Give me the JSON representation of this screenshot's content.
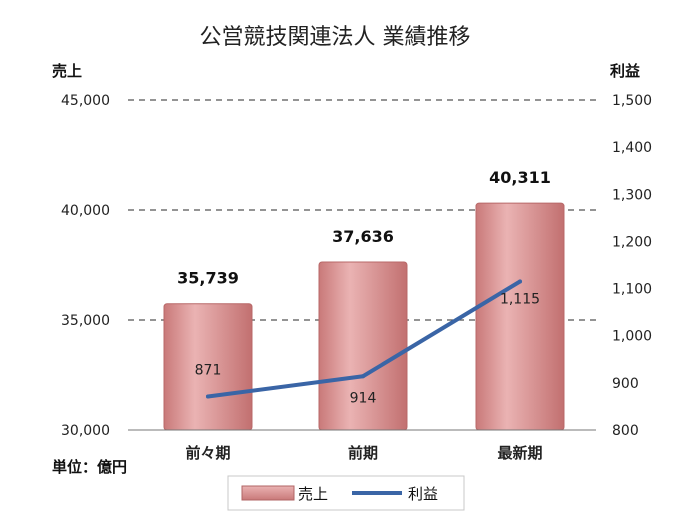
{
  "chart_data": {
    "type": "bar",
    "title": "公営競技関連法人  業績推移",
    "categories": [
      "前々期",
      "前期",
      "最新期"
    ],
    "series": [
      {
        "name": "売上",
        "type": "bar",
        "axis": "left",
        "values": [
          35739,
          37636,
          40311
        ],
        "labels": [
          "35,739",
          "37,636",
          "40,311"
        ]
      },
      {
        "name": "利益",
        "type": "line",
        "axis": "right",
        "values": [
          871,
          914,
          1115
        ],
        "labels": [
          "871",
          "914",
          "1,115"
        ]
      }
    ],
    "y_left": {
      "title": "売上",
      "ylim": [
        30000,
        45000
      ],
      "ticks": [
        "30,000",
        "35,000",
        "40,000",
        "45,000"
      ],
      "tick_values": [
        30000,
        35000,
        40000,
        45000
      ]
    },
    "y_right": {
      "title": "利益",
      "ylim": [
        800,
        1500
      ],
      "ticks": [
        "800",
        "900",
        "1,000",
        "1,100",
        "1,200",
        "1,300",
        "1,400",
        "1,500"
      ],
      "tick_values": [
        800,
        900,
        1000,
        1100,
        1200,
        1300,
        1400,
        1500
      ]
    },
    "unit_note": "単位：億円",
    "grid": "dashed horizontal",
    "legend_position": "bottom",
    "colors": {
      "bar": "#d98a8a",
      "bar_dark": "#b86868",
      "line": "#3a65a6"
    }
  }
}
